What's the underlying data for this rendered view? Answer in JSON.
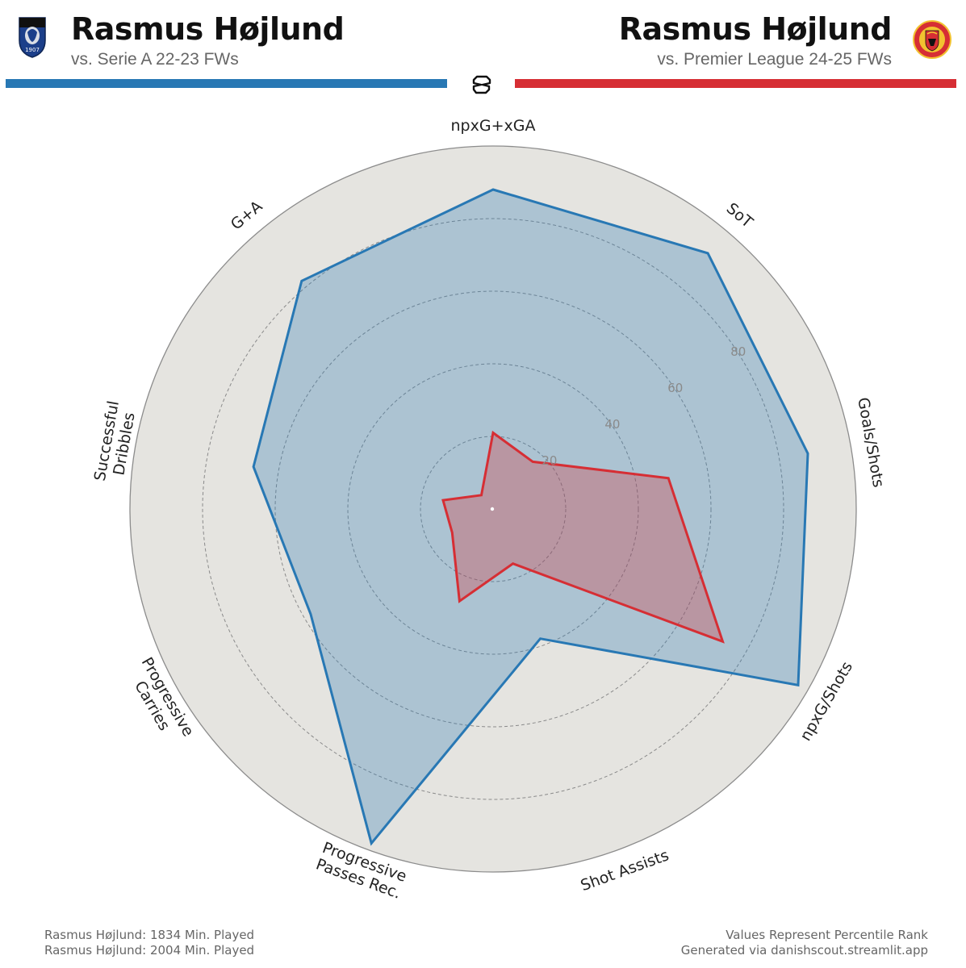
{
  "header": {
    "left": {
      "player": "Rasmus Højlund",
      "comparison": "vs. Serie A 22-23 FWs",
      "crest_year": "1907",
      "color": "#2878b4"
    },
    "right": {
      "player": "Rasmus Højlund",
      "comparison": "vs. Premier League 24-25 FWs",
      "crest_text": "MANCHESTER UNITED",
      "color": "#d62e34"
    }
  },
  "chart_data": {
    "type": "radar",
    "axes": [
      "npxG+xGA",
      "SoT",
      "Goals/Shots",
      "npxG/Shots",
      "Shot Assists",
      "Progressive Passes Rec.",
      "Progressive Carries",
      "Successful Dribbles",
      "G+A"
    ],
    "axis_labels": [
      [
        "npxG+xGA"
      ],
      [
        "SoT"
      ],
      [
        "Goals/Shots"
      ],
      [
        "npxG/Shots"
      ],
      [
        "Shot Assists"
      ],
      [
        "Progressive",
        "Passes Rec."
      ],
      [
        "Progressive",
        "Carries"
      ],
      [
        "Successful",
        "Dribbles"
      ],
      [
        "G+A"
      ]
    ],
    "rlim": [
      0,
      100
    ],
    "ring_ticks": [
      20,
      40,
      60,
      80
    ],
    "series": [
      {
        "label": "Serie A 22-23",
        "values": [
          88,
          92,
          88,
          97,
          38,
          98,
          58,
          67,
          82
        ],
        "color": "#2878b4",
        "fill": "#2878b4"
      },
      {
        "label": "Premier League 24-25",
        "values": [
          21,
          17,
          49,
          73,
          16,
          27,
          13,
          14,
          5
        ],
        "color": "#d62e34",
        "fill": "#d62e34"
      }
    ],
    "background_color": "#e5e4e0",
    "grid": true
  },
  "footer": {
    "left_lines": [
      "Rasmus Højlund: 1834 Min. Played",
      "Rasmus Højlund: 2004 Min. Played"
    ],
    "right_lines": [
      "Values Represent Percentile Rank",
      "Generated via danishscout.streamlit.app"
    ]
  }
}
